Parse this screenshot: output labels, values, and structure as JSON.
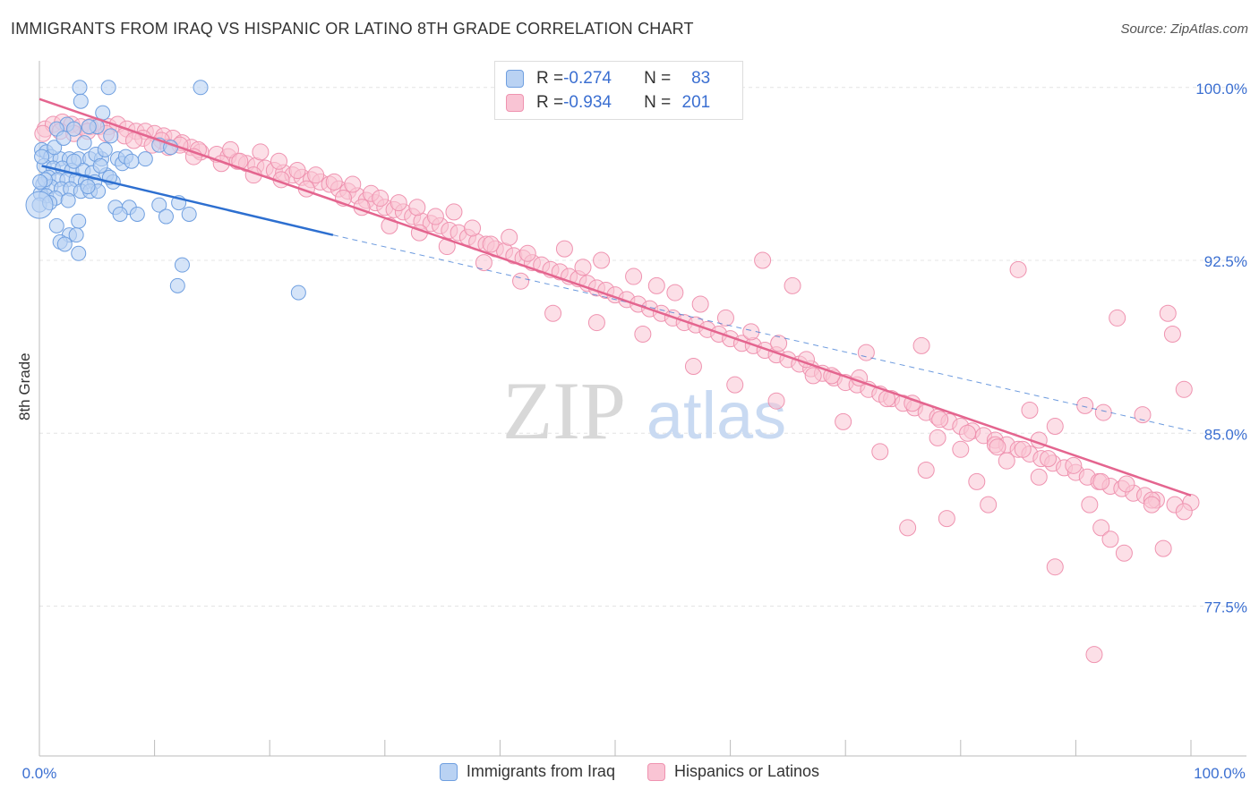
{
  "title": "IMMIGRANTS FROM IRAQ VS HISPANIC OR LATINO 8TH GRADE CORRELATION CHART",
  "source": "Source: ZipAtlas.com",
  "watermark": {
    "part1": "ZIP",
    "part2": "atlas"
  },
  "colors": {
    "blue_fill": "#b9d2f3",
    "blue_stroke": "#6f9fe0",
    "blue_line": "#2d6fd0",
    "pink_fill": "#f9c4d4",
    "pink_stroke": "#ef93b0",
    "pink_line": "#e4658f",
    "tick_label": "#3b6fd1",
    "grid": "#e4e4e4"
  },
  "stats": {
    "blue": {
      "r_label": "R = ",
      "r": "-0.274",
      "n_label": "N = ",
      "n": "83"
    },
    "pink": {
      "r_label": "R = ",
      "r": "-0.934",
      "n_label": "N = ",
      "n": "201"
    }
  },
  "chart_data": {
    "type": "scatter",
    "title": "IMMIGRANTS FROM IRAQ VS HISPANIC OR LATINO 8TH GRADE CORRELATION CHART",
    "xlabel": "",
    "ylabel": "8th Grade",
    "xlim": [
      0,
      100
    ],
    "ylim": [
      71.0,
      101.0
    ],
    "x_tick_labels": [
      "0.0%",
      "100.0%"
    ],
    "y_ticks": [
      100.0,
      92.5,
      85.0,
      77.5
    ],
    "y_tick_labels": [
      "100.0%",
      "92.5%",
      "85.0%",
      "77.5%"
    ],
    "grid": true,
    "legend_position": "bottom",
    "series": [
      {
        "name": "Immigrants from Iraq",
        "trend": {
          "x0": 0.2,
          "y0": 96.6,
          "x1": 25.5,
          "y1": 93.6,
          "dash_to_x": 100,
          "dash_to_y": 85.1
        },
        "points": [
          [
            3.5,
            100.0
          ],
          [
            6.0,
            100.0
          ],
          [
            14.0,
            100.0
          ],
          [
            3.6,
            99.4
          ],
          [
            5.5,
            98.9
          ],
          [
            5.0,
            98.3
          ],
          [
            2.4,
            98.4
          ],
          [
            1.5,
            98.2
          ],
          [
            3.0,
            98.2
          ],
          [
            4.3,
            98.3
          ],
          [
            6.2,
            97.9
          ],
          [
            10.4,
            97.5
          ],
          [
            11.4,
            97.4
          ],
          [
            0.2,
            97.3
          ],
          [
            0.6,
            97.2
          ],
          [
            1.0,
            97.0
          ],
          [
            1.8,
            96.9
          ],
          [
            2.6,
            96.9
          ],
          [
            3.4,
            96.9
          ],
          [
            4.4,
            96.9
          ],
          [
            5.4,
            96.9
          ],
          [
            6.8,
            96.9
          ],
          [
            7.2,
            96.7
          ],
          [
            9.2,
            96.9
          ],
          [
            0.4,
            96.6
          ],
          [
            1.2,
            96.5
          ],
          [
            2.0,
            96.5
          ],
          [
            2.8,
            96.4
          ],
          [
            3.8,
            96.4
          ],
          [
            4.6,
            96.3
          ],
          [
            5.8,
            96.2
          ],
          [
            0.8,
            96.1
          ],
          [
            1.6,
            96.0
          ],
          [
            2.4,
            96.0
          ],
          [
            3.2,
            96.0
          ],
          [
            4.0,
            95.9
          ],
          [
            4.8,
            95.9
          ],
          [
            6.4,
            95.9
          ],
          [
            0.3,
            95.8
          ],
          [
            1.0,
            95.7
          ],
          [
            1.9,
            95.6
          ],
          [
            2.7,
            95.6
          ],
          [
            3.6,
            95.5
          ],
          [
            4.4,
            95.5
          ],
          [
            5.1,
            95.5
          ],
          [
            0.1,
            95.4
          ],
          [
            0.6,
            95.3
          ],
          [
            1.4,
            95.2
          ],
          [
            0.0,
            94.9
          ],
          [
            6.6,
            94.8
          ],
          [
            7.8,
            94.8
          ],
          [
            10.4,
            94.9
          ],
          [
            12.1,
            95.0
          ],
          [
            7.0,
            94.5
          ],
          [
            8.5,
            94.5
          ],
          [
            11.0,
            94.4
          ],
          [
            13.0,
            94.5
          ],
          [
            3.4,
            94.2
          ],
          [
            1.5,
            94.0
          ],
          [
            2.6,
            93.6
          ],
          [
            3.2,
            93.6
          ],
          [
            1.8,
            93.3
          ],
          [
            2.2,
            93.2
          ],
          [
            3.4,
            92.8
          ],
          [
            12.4,
            92.3
          ],
          [
            12.0,
            91.4
          ],
          [
            22.5,
            91.1
          ],
          [
            0.2,
            97.0
          ],
          [
            0.5,
            96.0
          ],
          [
            1.3,
            97.4
          ],
          [
            2.1,
            97.8
          ],
          [
            4.9,
            97.1
          ],
          [
            5.3,
            96.6
          ],
          [
            6.1,
            96.1
          ],
          [
            0.9,
            95.0
          ],
          [
            2.5,
            95.1
          ],
          [
            3.0,
            96.8
          ],
          [
            3.9,
            97.6
          ],
          [
            4.2,
            95.7
          ],
          [
            5.7,
            97.3
          ],
          [
            7.5,
            97.0
          ],
          [
            8.0,
            96.8
          ],
          [
            0.05,
            95.9
          ]
        ]
      },
      {
        "name": "Hispanics or Latinos",
        "trend": {
          "x0": 0.0,
          "y0": 99.5,
          "x1": 100.0,
          "y1": 82.3
        },
        "points": [
          [
            0.5,
            98.2
          ],
          [
            1.2,
            98.4
          ],
          [
            2.0,
            98.5
          ],
          [
            2.8,
            98.4
          ],
          [
            3.6,
            98.3
          ],
          [
            4.4,
            98.3
          ],
          [
            5.2,
            98.3
          ],
          [
            6.0,
            98.3
          ],
          [
            6.8,
            98.4
          ],
          [
            7.6,
            98.2
          ],
          [
            8.4,
            98.1
          ],
          [
            9.2,
            98.1
          ],
          [
            10.0,
            98.0
          ],
          [
            10.8,
            97.9
          ],
          [
            11.6,
            97.8
          ],
          [
            12.4,
            97.6
          ],
          [
            13.2,
            97.4
          ],
          [
            14.0,
            97.2
          ],
          [
            0.3,
            98.0
          ],
          [
            1.8,
            98.1
          ],
          [
            3.0,
            98.0
          ],
          [
            4.2,
            98.1
          ],
          [
            5.8,
            98.0
          ],
          [
            7.4,
            97.9
          ],
          [
            9.0,
            97.8
          ],
          [
            10.6,
            97.7
          ],
          [
            12.2,
            97.5
          ],
          [
            13.8,
            97.3
          ],
          [
            15.4,
            97.1
          ],
          [
            16.4,
            97.0
          ],
          [
            17.2,
            96.8
          ],
          [
            18.0,
            96.7
          ],
          [
            18.8,
            96.6
          ],
          [
            19.6,
            96.5
          ],
          [
            20.4,
            96.4
          ],
          [
            21.2,
            96.3
          ],
          [
            22.0,
            96.2
          ],
          [
            22.8,
            96.1
          ],
          [
            23.6,
            96.0
          ],
          [
            24.4,
            95.9
          ],
          [
            25.2,
            95.8
          ],
          [
            26.0,
            95.6
          ],
          [
            26.8,
            95.5
          ],
          [
            27.6,
            95.3
          ],
          [
            28.4,
            95.1
          ],
          [
            29.2,
            95.0
          ],
          [
            30.0,
            94.8
          ],
          [
            30.8,
            94.7
          ],
          [
            31.6,
            94.6
          ],
          [
            32.4,
            94.4
          ],
          [
            33.2,
            94.2
          ],
          [
            34.0,
            94.1
          ],
          [
            34.8,
            94.0
          ],
          [
            35.6,
            93.8
          ],
          [
            36.4,
            93.7
          ],
          [
            37.2,
            93.5
          ],
          [
            38.0,
            93.3
          ],
          [
            38.8,
            93.2
          ],
          [
            39.6,
            93.0
          ],
          [
            40.4,
            92.9
          ],
          [
            41.2,
            92.7
          ],
          [
            42.0,
            92.6
          ],
          [
            42.8,
            92.4
          ],
          [
            43.6,
            92.3
          ],
          [
            44.4,
            92.1
          ],
          [
            45.2,
            92.0
          ],
          [
            46.0,
            91.8
          ],
          [
            46.8,
            91.7
          ],
          [
            47.6,
            91.5
          ],
          [
            48.4,
            91.3
          ],
          [
            49.2,
            91.2
          ],
          [
            50.0,
            91.0
          ],
          [
            51.0,
            90.8
          ],
          [
            52.0,
            90.6
          ],
          [
            53.0,
            90.4
          ],
          [
            54.0,
            90.2
          ],
          [
            55.0,
            90.0
          ],
          [
            56.0,
            89.8
          ],
          [
            57.0,
            89.7
          ],
          [
            58.0,
            89.5
          ],
          [
            59.0,
            89.3
          ],
          [
            60.0,
            89.1
          ],
          [
            61.0,
            88.9
          ],
          [
            62.0,
            88.8
          ],
          [
            63.0,
            88.6
          ],
          [
            64.0,
            88.4
          ],
          [
            65.0,
            88.2
          ],
          [
            66.0,
            88.0
          ],
          [
            67.0,
            87.8
          ],
          [
            68.0,
            87.6
          ],
          [
            69.0,
            87.4
          ],
          [
            70.0,
            87.2
          ],
          [
            71.0,
            87.1
          ],
          [
            72.0,
            86.9
          ],
          [
            73.0,
            86.7
          ],
          [
            74.0,
            86.5
          ],
          [
            75.0,
            86.3
          ],
          [
            76.0,
            86.1
          ],
          [
            77.0,
            85.9
          ],
          [
            78.0,
            85.7
          ],
          [
            79.0,
            85.5
          ],
          [
            80.0,
            85.3
          ],
          [
            81.0,
            85.1
          ],
          [
            82.0,
            84.9
          ],
          [
            83.0,
            84.7
          ],
          [
            84.0,
            84.5
          ],
          [
            85.0,
            84.3
          ],
          [
            86.0,
            84.1
          ],
          [
            87.0,
            83.9
          ],
          [
            88.0,
            83.7
          ],
          [
            89.0,
            83.5
          ],
          [
            90.0,
            83.3
          ],
          [
            91.0,
            83.1
          ],
          [
            92.0,
            82.9
          ],
          [
            93.0,
            82.7
          ],
          [
            94.0,
            82.6
          ],
          [
            95.0,
            82.4
          ],
          [
            96.0,
            82.3
          ],
          [
            97.0,
            82.1
          ],
          [
            100.0,
            82.0
          ],
          [
            16.6,
            97.3
          ],
          [
            17.4,
            96.8
          ],
          [
            19.2,
            97.2
          ],
          [
            20.8,
            96.8
          ],
          [
            22.4,
            96.4
          ],
          [
            24.0,
            96.2
          ],
          [
            25.6,
            95.9
          ],
          [
            27.2,
            95.8
          ],
          [
            28.8,
            95.4
          ],
          [
            29.6,
            95.2
          ],
          [
            31.2,
            95.0
          ],
          [
            32.8,
            94.8
          ],
          [
            34.4,
            94.4
          ],
          [
            36.0,
            94.6
          ],
          [
            37.6,
            93.9
          ],
          [
            39.2,
            93.2
          ],
          [
            40.8,
            93.5
          ],
          [
            42.4,
            92.8
          ],
          [
            45.6,
            93.0
          ],
          [
            47.2,
            92.2
          ],
          [
            48.8,
            92.5
          ],
          [
            51.6,
            91.8
          ],
          [
            53.6,
            91.4
          ],
          [
            55.2,
            91.1
          ],
          [
            57.4,
            90.6
          ],
          [
            59.6,
            90.0
          ],
          [
            61.8,
            89.4
          ],
          [
            64.2,
            88.9
          ],
          [
            66.6,
            88.2
          ],
          [
            68.8,
            87.5
          ],
          [
            71.2,
            87.4
          ],
          [
            73.6,
            86.5
          ],
          [
            75.8,
            86.3
          ],
          [
            78.2,
            85.6
          ],
          [
            80.6,
            85.0
          ],
          [
            83.0,
            84.5
          ],
          [
            85.4,
            84.3
          ],
          [
            87.6,
            83.9
          ],
          [
            89.8,
            83.6
          ],
          [
            92.2,
            82.9
          ],
          [
            94.4,
            82.8
          ],
          [
            96.6,
            82.1
          ],
          [
            98.6,
            81.9
          ],
          [
            99.4,
            81.6
          ],
          [
            62.8,
            92.5
          ],
          [
            65.4,
            91.4
          ],
          [
            71.8,
            88.5
          ],
          [
            76.6,
            88.8
          ],
          [
            85.0,
            92.1
          ],
          [
            93.6,
            90.0
          ],
          [
            98.0,
            90.2
          ],
          [
            98.4,
            89.3
          ],
          [
            99.4,
            86.9
          ],
          [
            95.8,
            85.8
          ],
          [
            92.4,
            85.9
          ],
          [
            90.8,
            86.2
          ],
          [
            88.2,
            85.3
          ],
          [
            86.0,
            86.0
          ],
          [
            83.2,
            84.4
          ],
          [
            80.0,
            84.3
          ],
          [
            77.0,
            83.4
          ],
          [
            75.4,
            80.9
          ],
          [
            78.8,
            81.3
          ],
          [
            82.4,
            81.9
          ],
          [
            86.8,
            83.1
          ],
          [
            88.2,
            79.2
          ],
          [
            91.2,
            81.9
          ],
          [
            92.2,
            80.9
          ],
          [
            93.0,
            80.4
          ],
          [
            94.2,
            79.8
          ],
          [
            96.6,
            81.9
          ],
          [
            97.6,
            80.0
          ],
          [
            91.6,
            75.4
          ],
          [
            86.8,
            84.7
          ],
          [
            84.0,
            83.8
          ],
          [
            81.4,
            82.9
          ],
          [
            78.0,
            84.8
          ],
          [
            73.0,
            84.2
          ],
          [
            69.8,
            85.5
          ],
          [
            67.2,
            87.5
          ],
          [
            64.0,
            86.4
          ],
          [
            60.4,
            87.1
          ],
          [
            56.8,
            87.9
          ],
          [
            52.4,
            89.3
          ],
          [
            48.4,
            89.8
          ],
          [
            44.6,
            90.2
          ],
          [
            41.8,
            91.6
          ],
          [
            38.6,
            92.4
          ],
          [
            35.4,
            93.1
          ],
          [
            33.0,
            93.7
          ],
          [
            30.4,
            94.0
          ],
          [
            28.0,
            94.8
          ],
          [
            26.4,
            95.2
          ],
          [
            23.2,
            95.6
          ],
          [
            21.0,
            96.0
          ],
          [
            18.6,
            96.2
          ],
          [
            15.8,
            96.7
          ],
          [
            13.4,
            97.0
          ],
          [
            11.2,
            97.4
          ],
          [
            9.8,
            97.5
          ],
          [
            8.2,
            97.7
          ]
        ]
      }
    ]
  },
  "legend": {
    "items": [
      {
        "label": "Immigrants from Iraq"
      },
      {
        "label": "Hispanics or Latinos"
      }
    ]
  }
}
